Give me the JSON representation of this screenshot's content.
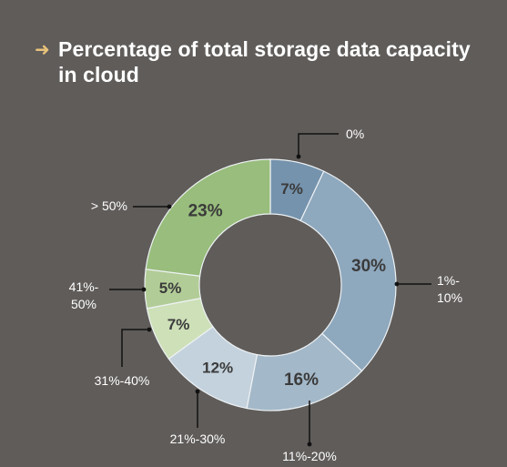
{
  "header": {
    "icon": "arrow-right-icon",
    "title": "Percentage of total storage data capacity in cloud"
  },
  "chart_data": {
    "type": "pie",
    "donut": true,
    "title": "Percentage of total storage data capacity in cloud",
    "slices": [
      {
        "category": "0%",
        "value": 7,
        "label": "7%",
        "color": "#7593ad",
        "text_color": "#2f3b45"
      },
      {
        "category": "1%-10%",
        "value": 30,
        "label": "30%",
        "color": "#8ea8be",
        "text_color": "#2f3b45"
      },
      {
        "category": "11%-20%",
        "value": 16,
        "label": "16%",
        "color": "#a3b8c8",
        "text_color": "#2f3b45"
      },
      {
        "category": "21%-30%",
        "value": 12,
        "label": "12%",
        "color": "#c4d2dd",
        "text_color": "#2f3b45"
      },
      {
        "category": "31%-40%",
        "value": 7,
        "label": "7%",
        "color": "#cde0b8",
        "text_color": "#3d4a33"
      },
      {
        "category": "41%-50%",
        "value": 5,
        "label": "5%",
        "color": "#b2cc97",
        "text_color": "#3d4a33"
      },
      {
        "category": "> 50%",
        "value": 23,
        "label": "23%",
        "color": "#98bd7c",
        "text_color": "#3d4a33"
      }
    ]
  }
}
